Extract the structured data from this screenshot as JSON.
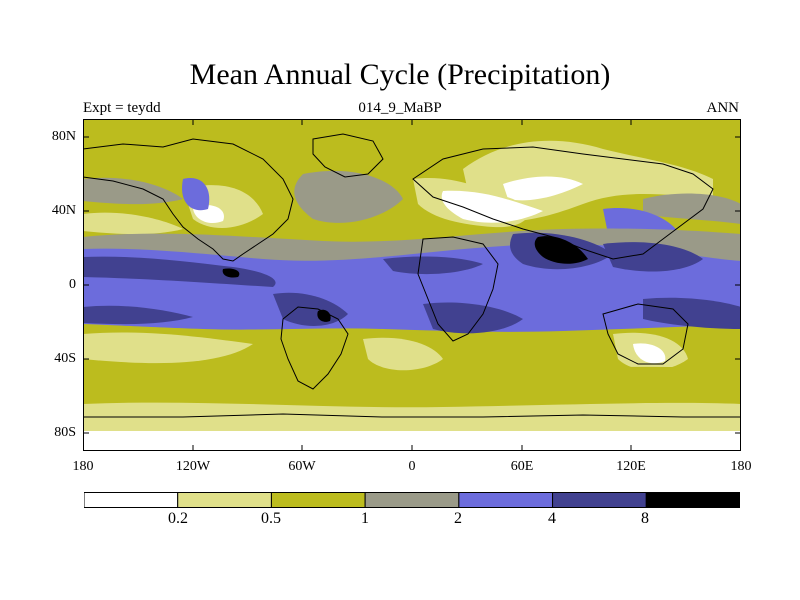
{
  "title": "Mean Annual Cycle (Precipitation)",
  "subtitle_left": "Expt = teydd",
  "subtitle_center": "014_9_MaBP",
  "subtitle_right": "ANN",
  "map": {
    "projection": "cylindrical equidistant",
    "lon_range": [
      -180,
      180
    ],
    "lat_range": [
      -90,
      90
    ],
    "lat_ticks": [
      {
        "label": "80N",
        "value": 80
      },
      {
        "label": "40N",
        "value": 40
      },
      {
        "label": "0",
        "value": 0
      },
      {
        "label": "40S",
        "value": -40
      },
      {
        "label": "80S",
        "value": -80
      }
    ],
    "lon_ticks": [
      {
        "label": "180",
        "value": -180
      },
      {
        "label": "120W",
        "value": -120
      },
      {
        "label": "60W",
        "value": -60
      },
      {
        "label": "0",
        "value": 0
      },
      {
        "label": "60E",
        "value": 60
      },
      {
        "label": "120E",
        "value": 120
      },
      {
        "label": "180",
        "value": 180
      }
    ]
  },
  "colorbar": {
    "levels": [
      "0.2",
      "0.5",
      "1",
      "2",
      "4",
      "8"
    ],
    "colors": [
      "#ffffff",
      "#e0e08a",
      "#bcbc1e",
      "#9a9a88",
      "#6c6cdc",
      "#414190",
      "#000000"
    ]
  },
  "chart_data": {
    "type": "heatmap",
    "title": "Mean Annual Cycle (Precipitation)",
    "variable": "Precipitation",
    "experiment": "teydd",
    "period": "014_9_MaBP",
    "season": "ANN",
    "x_range": [
      -180,
      180
    ],
    "y_range": [
      -90,
      90
    ],
    "contour_levels": [
      0.2,
      0.5,
      1,
      2,
      4,
      8
    ]
  },
  "colors": {
    "background": "#ffffff",
    "coast": "#000000"
  }
}
